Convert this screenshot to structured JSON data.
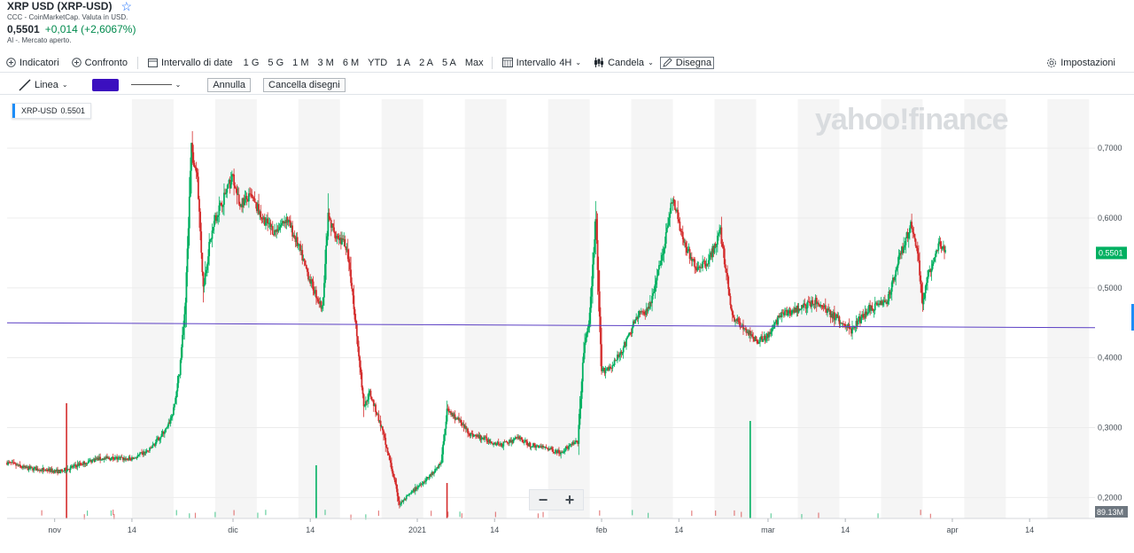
{
  "header": {
    "title": "XRP USD (XRP-USD)",
    "subtitle": "CCC - CoinMarketCap. Valuta in USD.",
    "price": "0,5501",
    "change": "+0,014 (+2,6067%)",
    "market_status": "Al -. Mercato aperto."
  },
  "toolbar": {
    "indicators": "Indicatori",
    "compare": "Confronto",
    "date_range": "Intervallo di date",
    "ranges": [
      "1 G",
      "5 G",
      "1 M",
      "3 M",
      "6 M",
      "YTD",
      "1 A",
      "2 A",
      "5 A",
      "Max"
    ],
    "interval": "Intervallo",
    "interval_value": "4H",
    "chart_type": "Candela",
    "draw": "Disegna",
    "settings": "Impostazioni"
  },
  "drawbar": {
    "tool": "Linea",
    "color": "#3b0fbf",
    "undo": "Annulla",
    "clear": "Cancella disegni"
  },
  "legend": {
    "symbol": "XRP-USD",
    "value": "0.5501"
  },
  "watermark": "yahoo!finance",
  "zoom": {
    "minus": "−",
    "plus": "+"
  },
  "colors": {
    "up": "#00b061",
    "down": "#d42d2d",
    "drawn_line": "#5b3fc4",
    "price_tag": "#00b061",
    "volume_tag": "#6e7780"
  },
  "chart_data": {
    "type": "candlestick",
    "symbol": "XRP-USD",
    "x_tick_labels": [
      "nov",
      "14",
      "dic",
      "14",
      "2021",
      "14",
      "feb",
      "14",
      "mar",
      "14",
      "apr",
      "14"
    ],
    "y_tick_labels": [
      "0,7000",
      "0,6000",
      "0,5000",
      "0,4000",
      "0,3000",
      "0,2000"
    ],
    "ylim": [
      0.17,
      0.77
    ],
    "last_price_label": "0.5501",
    "volume_label": "89.13M",
    "trend_line": {
      "start": [
        "2020-10-24",
        0.45
      ],
      "end": [
        "2021-04-25",
        0.443
      ]
    },
    "close_series": [
      [
        "2020-10-24",
        0.25
      ],
      [
        "2020-10-27",
        0.242
      ],
      [
        "2020-10-30",
        0.24
      ],
      [
        "2020-11-02",
        0.237
      ],
      [
        "2020-11-05",
        0.247
      ],
      [
        "2020-11-08",
        0.255
      ],
      [
        "2020-11-11",
        0.256
      ],
      [
        "2020-11-14",
        0.255
      ],
      [
        "2020-11-17",
        0.268
      ],
      [
        "2020-11-19",
        0.29
      ],
      [
        "2020-11-20",
        0.3
      ],
      [
        "2020-11-21",
        0.325
      ],
      [
        "2020-11-22",
        0.38
      ],
      [
        "2020-11-23",
        0.48
      ],
      [
        "2020-11-24",
        0.7
      ],
      [
        "2020-11-25",
        0.66
      ],
      [
        "2020-11-26",
        0.5
      ],
      [
        "2020-11-27",
        0.56
      ],
      [
        "2020-11-28",
        0.6
      ],
      [
        "2020-11-29",
        0.62
      ],
      [
        "2020-11-30",
        0.64
      ],
      [
        "2020-12-01",
        0.66
      ],
      [
        "2020-12-02",
        0.62
      ],
      [
        "2020-12-04",
        0.63
      ],
      [
        "2020-12-06",
        0.6
      ],
      [
        "2020-12-08",
        0.58
      ],
      [
        "2020-12-10",
        0.6
      ],
      [
        "2020-12-12",
        0.56
      ],
      [
        "2020-12-14",
        0.51
      ],
      [
        "2020-12-16",
        0.47
      ],
      [
        "2020-12-17",
        0.6
      ],
      [
        "2020-12-18",
        0.58
      ],
      [
        "2020-12-20",
        0.56
      ],
      [
        "2020-12-21",
        0.5
      ],
      [
        "2020-12-22",
        0.42
      ],
      [
        "2020-12-23",
        0.33
      ],
      [
        "2020-12-24",
        0.35
      ],
      [
        "2020-12-26",
        0.3
      ],
      [
        "2020-12-28",
        0.23
      ],
      [
        "2020-12-29",
        0.19
      ],
      [
        "2021-01-01",
        0.215
      ],
      [
        "2021-01-03",
        0.23
      ],
      [
        "2021-01-05",
        0.25
      ],
      [
        "2021-01-06",
        0.325
      ],
      [
        "2021-01-08",
        0.31
      ],
      [
        "2021-01-10",
        0.29
      ],
      [
        "2021-01-12",
        0.285
      ],
      [
        "2021-01-15",
        0.275
      ],
      [
        "2021-01-18",
        0.285
      ],
      [
        "2021-01-20",
        0.275
      ],
      [
        "2021-01-23",
        0.27
      ],
      [
        "2021-01-25",
        0.265
      ],
      [
        "2021-01-28",
        0.28
      ],
      [
        "2021-01-29",
        0.41
      ],
      [
        "2021-01-30",
        0.46
      ],
      [
        "2021-01-31",
        0.6
      ],
      [
        "2021-02-01",
        0.38
      ],
      [
        "2021-02-03",
        0.39
      ],
      [
        "2021-02-05",
        0.42
      ],
      [
        "2021-02-07",
        0.46
      ],
      [
        "2021-02-09",
        0.47
      ],
      [
        "2021-02-11",
        0.54
      ],
      [
        "2021-02-13",
        0.63
      ],
      [
        "2021-02-15",
        0.56
      ],
      [
        "2021-02-17",
        0.53
      ],
      [
        "2021-02-19",
        0.54
      ],
      [
        "2021-02-21",
        0.58
      ],
      [
        "2021-02-23",
        0.46
      ],
      [
        "2021-02-25",
        0.44
      ],
      [
        "2021-02-27",
        0.425
      ],
      [
        "2021-03-01",
        0.43
      ],
      [
        "2021-03-03",
        0.46
      ],
      [
        "2021-03-06",
        0.47
      ],
      [
        "2021-03-09",
        0.48
      ],
      [
        "2021-03-12",
        0.46
      ],
      [
        "2021-03-15",
        0.44
      ],
      [
        "2021-03-18",
        0.47
      ],
      [
        "2021-03-21",
        0.48
      ],
      [
        "2021-03-23",
        0.54
      ],
      [
        "2021-03-25",
        0.59
      ],
      [
        "2021-03-26",
        0.56
      ],
      [
        "2021-03-27",
        0.48
      ],
      [
        "2021-03-28",
        0.52
      ],
      [
        "2021-03-30",
        0.565
      ],
      [
        "2021-03-31",
        0.55
      ]
    ]
  }
}
